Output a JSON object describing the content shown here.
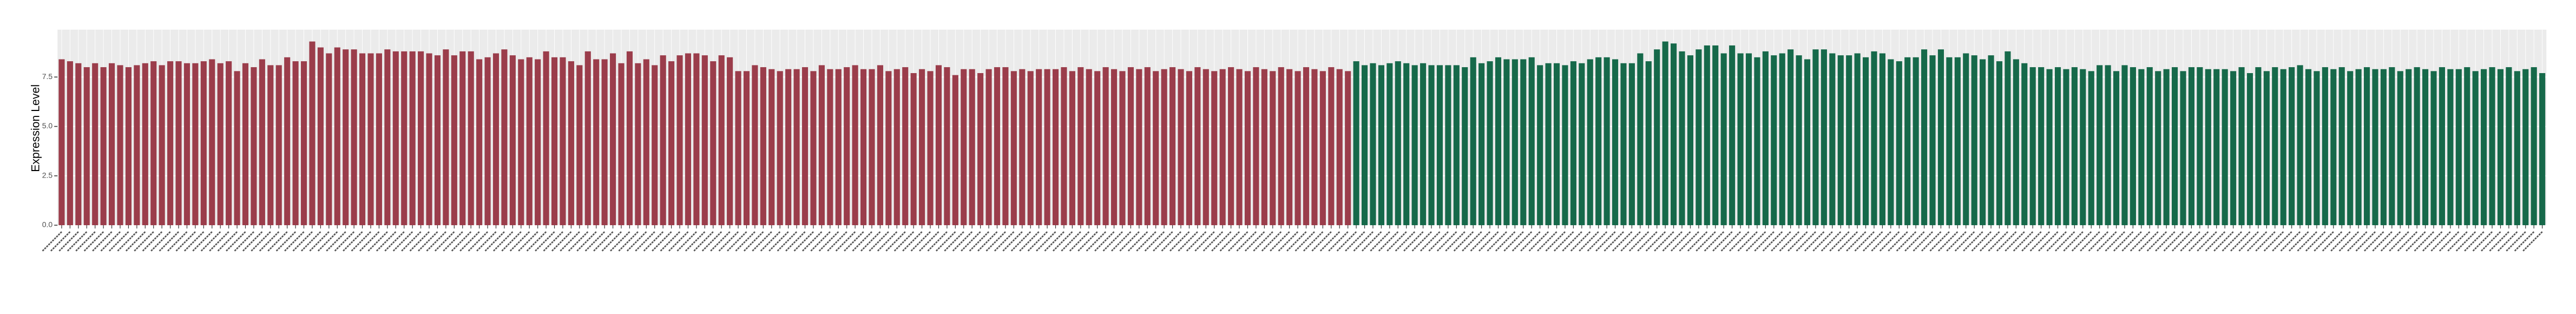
{
  "chart_data": {
    "type": "bar",
    "y_label": "Expression Level",
    "ylim": [
      0,
      9.9
    ],
    "yticks": [
      {
        "value": 0,
        "label": "0.0"
      },
      2.5,
      {
        "value": 5,
        "label": "5.0"
      },
      7.5
    ],
    "grid": true,
    "series": [
      {
        "color": "#9b3d4b",
        "values": [
          8.4,
          8.3,
          8.2,
          8.0,
          8.2,
          8.0,
          8.2,
          8.1,
          8.0,
          8.1,
          8.2,
          8.3,
          8.1,
          8.3,
          8.3,
          8.2,
          8.2,
          8.3,
          8.4,
          8.2,
          8.3,
          7.8,
          8.2,
          8.0,
          8.4,
          8.1,
          8.1,
          8.5,
          8.3,
          8.3,
          9.3,
          9.0,
          8.7,
          9.0,
          8.9,
          8.9,
          8.7,
          8.7,
          8.7,
          8.9,
          8.8,
          8.8,
          8.8,
          8.8,
          8.7,
          8.6,
          8.9,
          8.6,
          8.8,
          8.8,
          8.4,
          8.5,
          8.7,
          8.9,
          8.6,
          8.4,
          8.5,
          8.4,
          8.8,
          8.5,
          8.5,
          8.3,
          8.1,
          8.8,
          8.4,
          8.4,
          8.7,
          8.2,
          8.8,
          8.2,
          8.4,
          8.1,
          8.6,
          8.3,
          8.6,
          8.7,
          8.7,
          8.6,
          8.3,
          8.6,
          8.5,
          7.8,
          7.8,
          8.1,
          8.0,
          7.9,
          7.8,
          7.9,
          7.9,
          8.0,
          7.8,
          8.1,
          7.9,
          7.9,
          8.0,
          8.1,
          7.9,
          7.9,
          8.1,
          7.8,
          7.9,
          8.0,
          7.7,
          7.9,
          7.8,
          8.1,
          8.0,
          7.6,
          7.9,
          7.9,
          7.7,
          7.9,
          8.0,
          8.0,
          7.8,
          7.9,
          7.8,
          7.9,
          7.9,
          7.9,
          8.0,
          7.8,
          8.0,
          7.9,
          7.8,
          8.0,
          7.9,
          7.8,
          8.0,
          7.9,
          8.0,
          7.8,
          7.9,
          8.0,
          7.9,
          7.8,
          8.0,
          7.9,
          7.8,
          7.9,
          8.0,
          7.9,
          7.8,
          8.0,
          7.9,
          7.8,
          8.0,
          7.9,
          7.8,
          8.0,
          7.9,
          7.8,
          8.0,
          7.9,
          7.8
        ]
      },
      {
        "color": "#16694a",
        "values": [
          8.3,
          8.1,
          8.2,
          8.1,
          8.2,
          8.3,
          8.2,
          8.1,
          8.2,
          8.1,
          8.1,
          8.1,
          8.1,
          8.0,
          8.5,
          8.2,
          8.3,
          8.5,
          8.4,
          8.4,
          8.4,
          8.5,
          8.1,
          8.2,
          8.2,
          8.1,
          8.3,
          8.2,
          8.4,
          8.5,
          8.5,
          8.4,
          8.2,
          8.2,
          8.7,
          8.3,
          8.9,
          9.3,
          9.2,
          8.8,
          8.6,
          8.9,
          9.1,
          9.1,
          8.7,
          9.1,
          8.7,
          8.7,
          8.5,
          8.8,
          8.6,
          8.7,
          8.9,
          8.6,
          8.4,
          8.9,
          8.9,
          8.7,
          8.6,
          8.6,
          8.7,
          8.5,
          8.8,
          8.7,
          8.4,
          8.3,
          8.5,
          8.5,
          8.9,
          8.6,
          8.9,
          8.5,
          8.5,
          8.7,
          8.6,
          8.4,
          8.6,
          8.3,
          8.8,
          8.4,
          8.2,
          8.0,
          8.0,
          7.9,
          8.0,
          7.9,
          8.0,
          7.9,
          7.8,
          8.1,
          8.1,
          7.8,
          8.1,
          8.0,
          7.9,
          8.0,
          7.8,
          7.9,
          8.0,
          7.8,
          8.0,
          8.0,
          7.9,
          7.9,
          7.9,
          7.8,
          8.0,
          7.7,
          8.0,
          7.8,
          8.0,
          7.9,
          8.0,
          8.1,
          7.9,
          7.8,
          8.0,
          7.9,
          8.0,
          7.8,
          7.9,
          8.0,
          7.9,
          7.9,
          8.0,
          7.8,
          7.9,
          8.0,
          7.9,
          7.8,
          8.0,
          7.9,
          7.9,
          8.0,
          7.8,
          7.9,
          8.0,
          7.9,
          8.0,
          7.8,
          7.9,
          8.0,
          7.7
        ]
      }
    ]
  }
}
